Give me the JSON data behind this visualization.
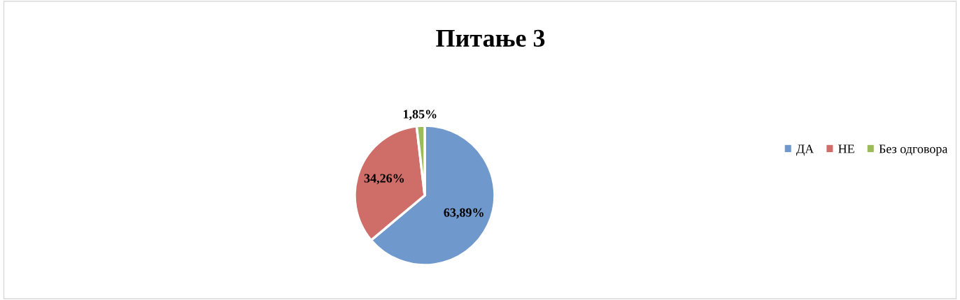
{
  "chart_data": {
    "type": "pie",
    "title": "Питање 3",
    "categories": [
      "ДА",
      "НЕ",
      "Без одговора"
    ],
    "values": [
      63.89,
      34.26,
      1.85
    ],
    "colors": [
      "#6f98cc",
      "#cf6e69",
      "#9bbb59"
    ],
    "value_labels": [
      "63,89%",
      "34,26%",
      "1,85%"
    ],
    "legend": "right"
  }
}
